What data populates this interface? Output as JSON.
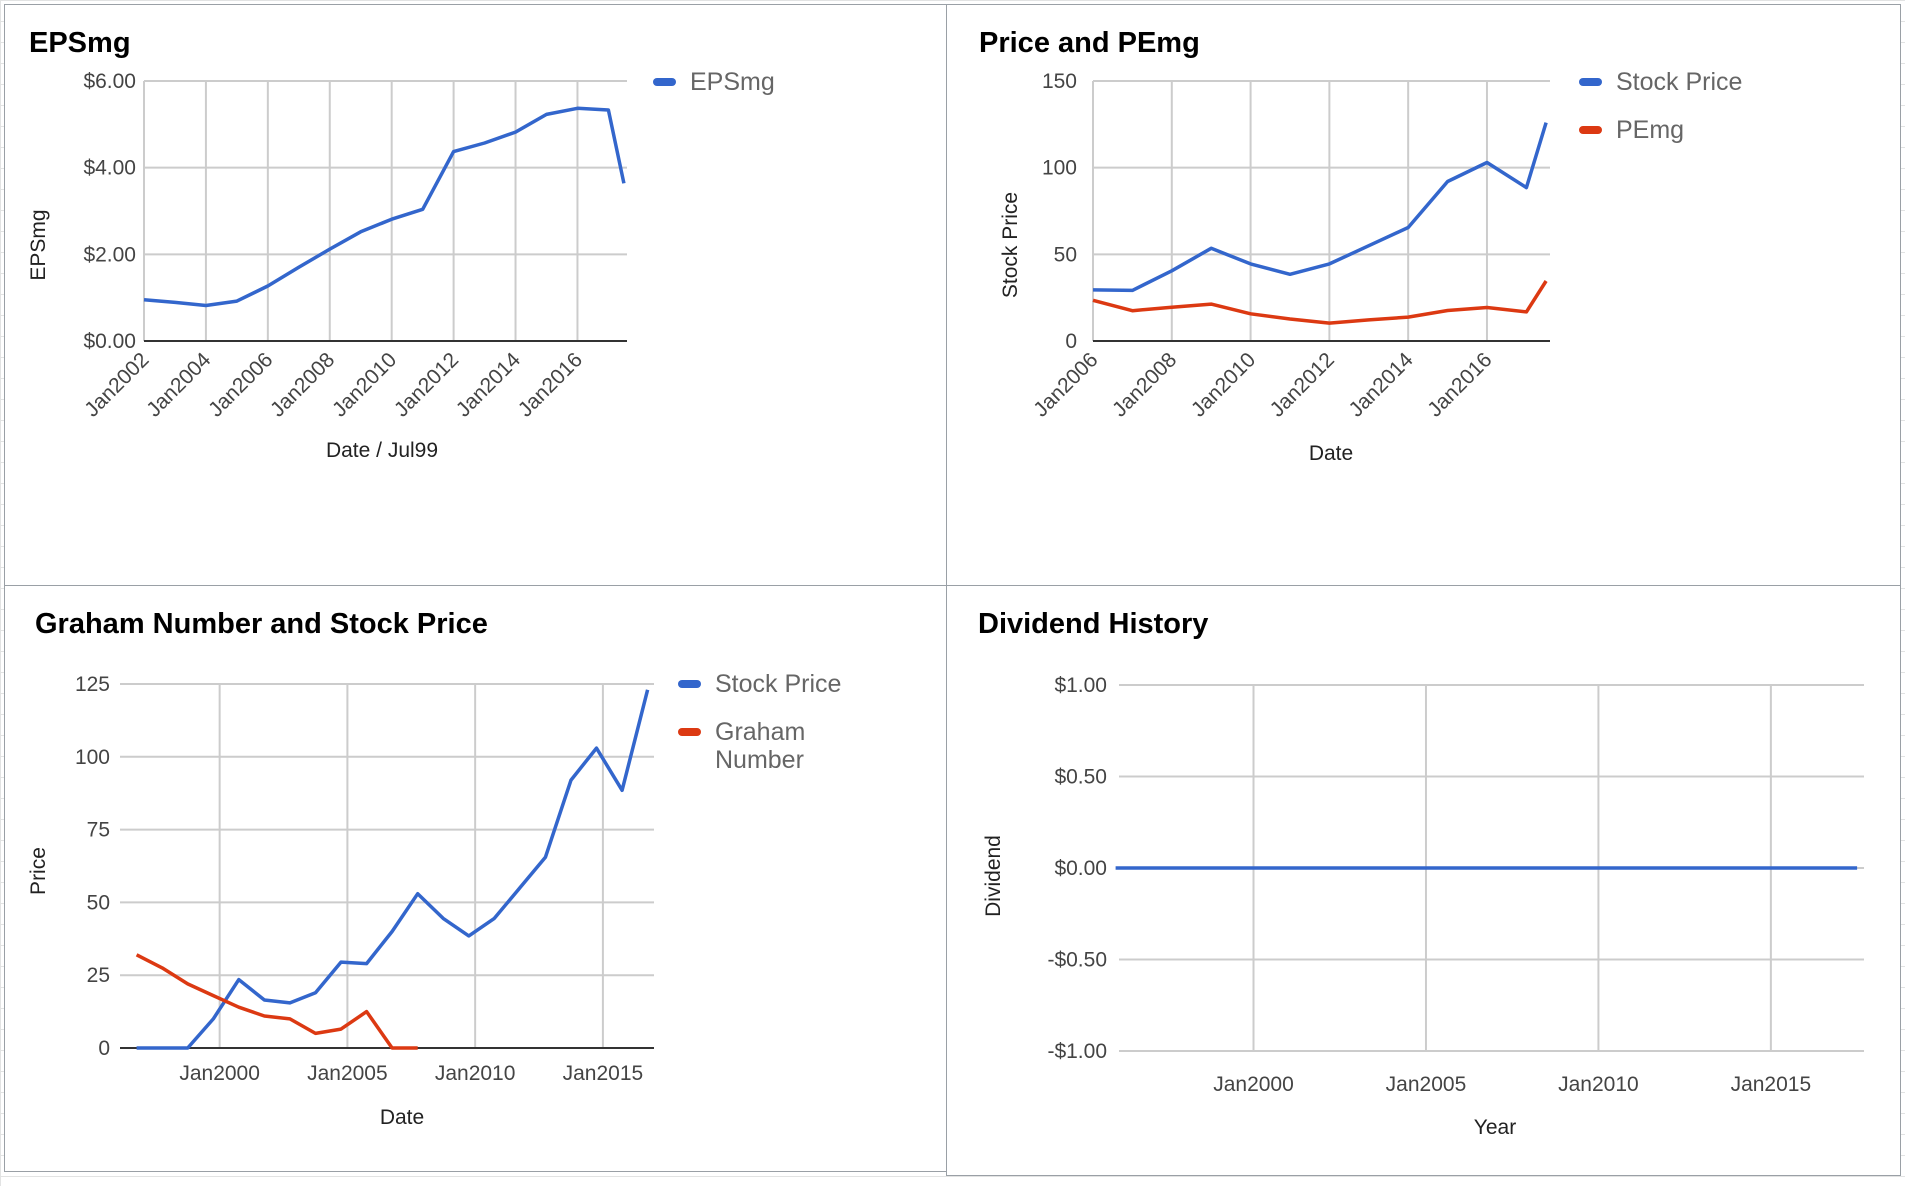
{
  "chart_data": [
    {
      "type": "line",
      "title": "EPSmg",
      "xlabel": "Date / Jul99",
      "ylabel": "EPSmg",
      "x_ticks": [
        "Jan2002",
        "Jan2004",
        "Jan2006",
        "Jan2008",
        "Jan2010",
        "Jan2012",
        "Jan2014",
        "Jan2016"
      ],
      "y_ticks": [
        "$0.00",
        "$2.00",
        "$4.00",
        "$6.00"
      ],
      "ylim": [
        0,
        6
      ],
      "grid": true,
      "legend_position": "right",
      "series": [
        {
          "name": "EPSmg",
          "color": "#3366cc",
          "points": [
            [
              "2002-01",
              0.95
            ],
            [
              "2003-01",
              0.89
            ],
            [
              "2004-01",
              0.82
            ],
            [
              "2005-01",
              0.92
            ],
            [
              "2006-01",
              1.27
            ],
            [
              "2007-01",
              1.7
            ],
            [
              "2008-01",
              2.12
            ],
            [
              "2009-01",
              2.52
            ],
            [
              "2010-01",
              2.81
            ],
            [
              "2011-01",
              3.04
            ],
            [
              "2012-01",
              4.37
            ],
            [
              "2013-01",
              4.57
            ],
            [
              "2014-01",
              4.82
            ],
            [
              "2015-01",
              5.23
            ],
            [
              "2016-01",
              5.37
            ],
            [
              "2017-01",
              5.33
            ],
            [
              "2017-07",
              3.64
            ]
          ]
        }
      ]
    },
    {
      "type": "line",
      "title": "Price and PEmg",
      "xlabel": "Date",
      "ylabel": "Stock Price",
      "x_ticks": [
        "Jan2006",
        "Jan2008",
        "Jan2010",
        "Jan2012",
        "Jan2014",
        "Jan2016"
      ],
      "y_ticks": [
        "0",
        "50",
        "100",
        "150"
      ],
      "ylim": [
        0,
        150
      ],
      "grid": true,
      "legend_position": "right",
      "series": [
        {
          "name": "Stock Price",
          "color": "#3366cc",
          "points": [
            [
              "2006-01",
              29.5
            ],
            [
              "2007-01",
              29.2
            ],
            [
              "2008-01",
              40.5
            ],
            [
              "2009-01",
              53.5
            ],
            [
              "2010-01",
              44.5
            ],
            [
              "2011-01",
              38.5
            ],
            [
              "2012-01",
              44.5
            ],
            [
              "2013-01",
              55.0
            ],
            [
              "2014-01",
              65.5
            ],
            [
              "2015-01",
              92.0
            ],
            [
              "2016-01",
              103.0
            ],
            [
              "2017-01",
              88.5
            ],
            [
              "2017-07",
              126.0
            ]
          ]
        },
        {
          "name": "PEmg",
          "color": "#dc3912",
          "points": [
            [
              "2006-01",
              23.5
            ],
            [
              "2007-01",
              17.5
            ],
            [
              "2008-01",
              19.5
            ],
            [
              "2009-01",
              21.3
            ],
            [
              "2010-01",
              15.7
            ],
            [
              "2011-01",
              12.7
            ],
            [
              "2012-01",
              10.3
            ],
            [
              "2013-01",
              12.2
            ],
            [
              "2014-01",
              13.8
            ],
            [
              "2015-01",
              17.6
            ],
            [
              "2016-01",
              19.3
            ],
            [
              "2017-01",
              16.8
            ],
            [
              "2017-07",
              34.6
            ]
          ]
        }
      ]
    },
    {
      "type": "line",
      "title": "Graham Number and Stock Price",
      "xlabel": "Date",
      "ylabel": "Price",
      "x_ticks": [
        "Jan2000",
        "Jan2005",
        "Jan2010",
        "Jan2015"
      ],
      "y_ticks": [
        "0",
        "25",
        "50",
        "75",
        "100",
        "125"
      ],
      "ylim": [
        0,
        125
      ],
      "grid": true,
      "legend_position": "right",
      "series": [
        {
          "name": "Stock Price",
          "color": "#3366cc",
          "points": [
            [
              "1996-10",
              0
            ],
            [
              "1997-10",
              0
            ],
            [
              "1998-10",
              0
            ],
            [
              "1999-10",
              10.0
            ],
            [
              "2000-10",
              23.5
            ],
            [
              "2001-10",
              16.5
            ],
            [
              "2002-10",
              15.5
            ],
            [
              "2003-10",
              19.0
            ],
            [
              "2004-10",
              29.5
            ],
            [
              "2005-10",
              29.0
            ],
            [
              "2006-10",
              40.0
            ],
            [
              "2007-10",
              53.0
            ],
            [
              "2008-10",
              44.5
            ],
            [
              "2009-10",
              38.5
            ],
            [
              "2010-10",
              44.5
            ],
            [
              "2011-10",
              55.0
            ],
            [
              "2012-10",
              65.5
            ],
            [
              "2013-10",
              92.0
            ],
            [
              "2014-10",
              103.0
            ],
            [
              "2015-10",
              88.5
            ],
            [
              "2016-10",
              123.0
            ]
          ]
        },
        {
          "name": "Graham Number",
          "color": "#dc3912",
          "points": [
            [
              "1996-10",
              32.0
            ],
            [
              "1997-10",
              27.5
            ],
            [
              "1998-10",
              22.0
            ],
            [
              "1999-10",
              18.0
            ],
            [
              "2000-10",
              14.0
            ],
            [
              "2001-10",
              11.0
            ],
            [
              "2002-10",
              10.0
            ],
            [
              "2003-10",
              5.0
            ],
            [
              "2004-10",
              6.5
            ],
            [
              "2005-10",
              12.5
            ],
            [
              "2006-10",
              0
            ],
            [
              "2007-10",
              0
            ]
          ]
        }
      ]
    },
    {
      "type": "line",
      "title": "Dividend History",
      "xlabel": "Year",
      "ylabel": "Dividend",
      "x_ticks": [
        "Jan2000",
        "Jan2005",
        "Jan2010",
        "Jan2015"
      ],
      "y_ticks": [
        "-$1.00",
        "-$0.50",
        "$0.00",
        "$0.50",
        "$1.00"
      ],
      "ylim": [
        -1,
        1
      ],
      "grid": true,
      "legend_position": "none",
      "series": [
        {
          "color": "#3366cc",
          "points": [
            [
              "1996-01",
              0
            ],
            [
              "2017-07",
              0
            ]
          ]
        }
      ]
    }
  ]
}
